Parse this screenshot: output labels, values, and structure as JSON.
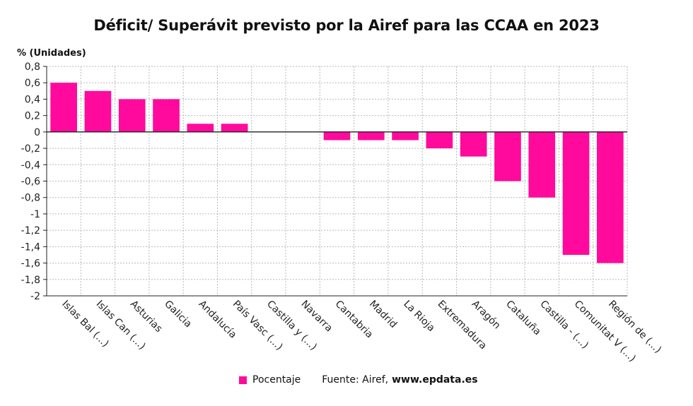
{
  "title": "Déficit/ Superávit previsto por la Airef para las CCAA en 2023",
  "colors": {
    "bar": "#ff0a9c",
    "grid": "#b8b8b8",
    "axis": "#222222"
  },
  "legend": {
    "series_label": "Pocentaje"
  },
  "source": {
    "prefix": "Fuente: Airef,",
    "site": "www.epdata.es"
  },
  "chart_data": {
    "type": "bar",
    "ylabel": "% (Unidades)",
    "ylim": [
      -2,
      0.8
    ],
    "yticks": [
      0.8,
      0.6,
      0.4,
      0.2,
      0,
      -0.2,
      -0.4,
      -0.6,
      -0.8,
      -1,
      -1.2,
      -1.4,
      -1.6,
      -1.8,
      -2
    ],
    "ytick_labels": [
      "0,8",
      "0,6",
      "0,4",
      "0,2",
      "0",
      "-0,2",
      "-0,4",
      "-0,6",
      "-0,8",
      "-1",
      "-1,2",
      "-1,4",
      "-1,6",
      "-1,8",
      "-2"
    ],
    "grid": true,
    "categories": [
      "Islas Bal (...)",
      "Islas Can (...)",
      "Asturias",
      "Galicia",
      "Andalucía",
      "País Vasc (...)",
      "Castilla y (...)",
      "Navarra",
      "Cantabria",
      "Madrid",
      "La Rioja",
      "Extremadura",
      "Aragón",
      "Cataluña",
      "Castilla - (...)",
      "Comunitat V (...)",
      "Región de (...)"
    ],
    "series": [
      {
        "name": "Pocentaje",
        "values": [
          0.6,
          0.5,
          0.4,
          0.4,
          0.1,
          0.1,
          0,
          0,
          -0.1,
          -0.1,
          -0.1,
          -0.2,
          -0.3,
          -0.6,
          -0.8,
          -1.5,
          -1.6
        ]
      }
    ]
  }
}
